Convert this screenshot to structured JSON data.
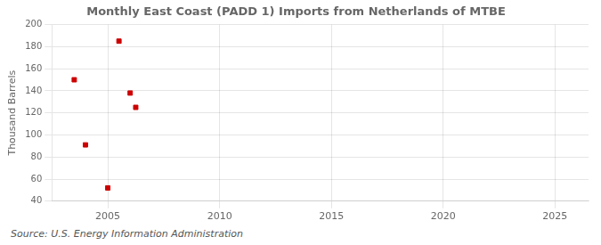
{
  "chart_data": {
    "type": "scatter",
    "title": "Monthly East Coast (PADD 1) Imports from Netherlands of MTBE",
    "ylabel": "Thousand Barrels",
    "annotations": [
      "Source: U.S. Energy Information Administration"
    ],
    "x": [
      2003.5,
      2004.0,
      2005.0,
      2005.5,
      2006.0,
      2006.25
    ],
    "values": [
      150,
      91,
      52,
      185,
      138,
      125
    ],
    "color": "#cc0000",
    "marker": "square",
    "xlim": [
      2002.5,
      2026.5
    ],
    "xticks": [
      2005,
      2010,
      2015,
      2020,
      2025
    ],
    "ylim": [
      40,
      200
    ],
    "yticks": [
      40,
      60,
      80,
      100,
      120,
      140,
      160,
      180,
      200
    ],
    "grid": true
  }
}
